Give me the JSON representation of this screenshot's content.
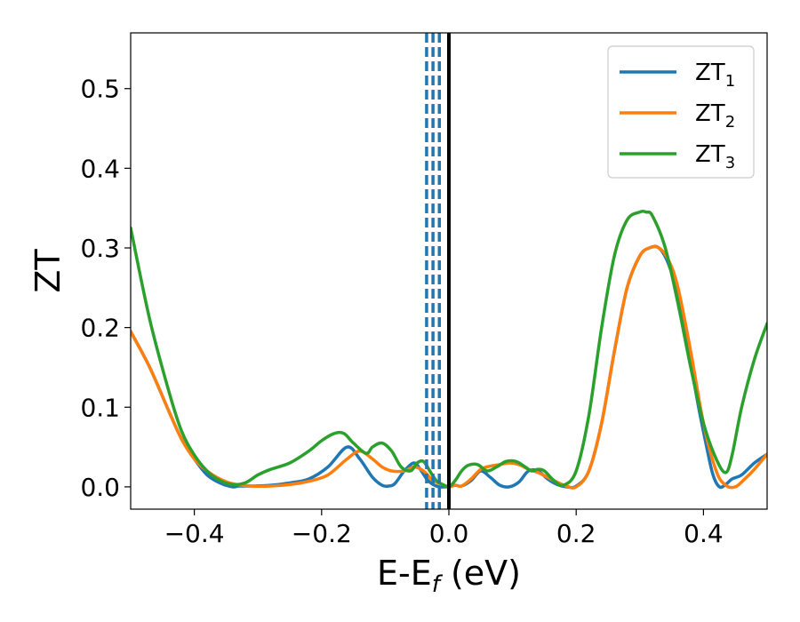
{
  "chart_data": {
    "type": "line",
    "xlabel": {
      "main": "E-E",
      "sub": "f",
      "suffix": " (eV)"
    },
    "ylabel": "ZT",
    "xlim": [
      -0.5,
      0.5
    ],
    "ylim": [
      -0.028,
      0.57
    ],
    "xticks": [
      -0.4,
      -0.2,
      0.0,
      0.2,
      0.4
    ],
    "xtick_labels": [
      "−0.4",
      "−0.2",
      "0.0",
      "0.2",
      "0.4"
    ],
    "yticks": [
      0.0,
      0.1,
      0.2,
      0.3,
      0.4,
      0.5
    ],
    "ytick_labels": [
      "0.0",
      "0.1",
      "0.2",
      "0.3",
      "0.4",
      "0.5"
    ],
    "grid": false,
    "legend_position": "top-right",
    "series": [
      {
        "name": "ZT",
        "sub": "1",
        "color": "#1f77b4",
        "x": [
          -0.5,
          -0.47,
          -0.44,
          -0.42,
          -0.4,
          -0.38,
          -0.36,
          -0.34,
          -0.33,
          -0.31,
          -0.28,
          -0.25,
          -0.22,
          -0.19,
          -0.16,
          -0.14,
          -0.12,
          -0.105,
          -0.095,
          -0.085,
          -0.07,
          -0.055,
          -0.045,
          -0.035,
          -0.025,
          -0.015,
          -0.005,
          0.0,
          0.01,
          0.02,
          0.035,
          0.05,
          0.065,
          0.08,
          0.095,
          0.11,
          0.125,
          0.14,
          0.155,
          0.17,
          0.185,
          0.2,
          0.22,
          0.24,
          0.26,
          0.28,
          0.3,
          0.315,
          0.33,
          0.345,
          0.36,
          0.375,
          0.39,
          0.405,
          0.415,
          0.425,
          0.435,
          0.445,
          0.46,
          0.48,
          0.5
        ],
        "y": [
          0.195,
          0.15,
          0.095,
          0.06,
          0.035,
          0.015,
          0.005,
          0.0,
          0.001,
          0.001,
          0.002,
          0.005,
          0.01,
          0.025,
          0.05,
          0.035,
          0.012,
          0.002,
          0.001,
          0.004,
          0.02,
          0.03,
          0.022,
          0.01,
          0.003,
          0.0,
          0.0,
          0.0,
          0.002,
          0.001,
          0.008,
          0.02,
          0.012,
          0.002,
          0.0,
          0.006,
          0.02,
          0.02,
          0.01,
          0.003,
          0.0,
          0.001,
          0.02,
          0.08,
          0.17,
          0.25,
          0.29,
          0.3,
          0.3,
          0.28,
          0.24,
          0.18,
          0.11,
          0.05,
          0.015,
          0.0,
          0.003,
          0.01,
          0.015,
          0.03,
          0.041
        ]
      },
      {
        "name": "ZT",
        "sub": "2",
        "color": "#ff7f0e",
        "x": [
          -0.5,
          -0.47,
          -0.44,
          -0.42,
          -0.4,
          -0.38,
          -0.36,
          -0.34,
          -0.31,
          -0.28,
          -0.25,
          -0.22,
          -0.19,
          -0.16,
          -0.14,
          -0.12,
          -0.105,
          -0.09,
          -0.07,
          -0.055,
          -0.04,
          -0.025,
          -0.01,
          0.0,
          0.01,
          0.02,
          0.035,
          0.05,
          0.065,
          0.08,
          0.095,
          0.11,
          0.125,
          0.14,
          0.155,
          0.17,
          0.185,
          0.2,
          0.22,
          0.24,
          0.26,
          0.28,
          0.3,
          0.315,
          0.33,
          0.345,
          0.36,
          0.38,
          0.4,
          0.42,
          0.435,
          0.45,
          0.465,
          0.48,
          0.5
        ],
        "y": [
          0.195,
          0.15,
          0.095,
          0.06,
          0.035,
          0.02,
          0.01,
          0.004,
          0.001,
          0.001,
          0.003,
          0.007,
          0.015,
          0.035,
          0.045,
          0.035,
          0.025,
          0.02,
          0.02,
          0.025,
          0.02,
          0.008,
          0.003,
          0.0,
          0.002,
          0.001,
          0.01,
          0.022,
          0.026,
          0.028,
          0.03,
          0.028,
          0.022,
          0.018,
          0.012,
          0.006,
          0.001,
          0.0,
          0.02,
          0.08,
          0.17,
          0.25,
          0.29,
          0.3,
          0.3,
          0.285,
          0.25,
          0.17,
          0.08,
          0.02,
          0.002,
          0.0,
          0.01,
          0.022,
          0.041
        ]
      },
      {
        "name": "ZT",
        "sub": "3",
        "color": "#2ca02c",
        "x": [
          -0.5,
          -0.47,
          -0.44,
          -0.42,
          -0.4,
          -0.38,
          -0.36,
          -0.34,
          -0.32,
          -0.3,
          -0.28,
          -0.25,
          -0.22,
          -0.2,
          -0.18,
          -0.165,
          -0.15,
          -0.13,
          -0.12,
          -0.105,
          -0.09,
          -0.075,
          -0.06,
          -0.05,
          -0.04,
          -0.03,
          -0.02,
          -0.01,
          0.0,
          0.01,
          0.02,
          0.03,
          0.045,
          0.06,
          0.075,
          0.09,
          0.105,
          0.12,
          0.13,
          0.14,
          0.15,
          0.165,
          0.18,
          0.2,
          0.22,
          0.24,
          0.26,
          0.28,
          0.3,
          0.31,
          0.32,
          0.34,
          0.36,
          0.38,
          0.4,
          0.42,
          0.435,
          0.445,
          0.46,
          0.48,
          0.5
        ],
        "y": [
          0.325,
          0.21,
          0.12,
          0.07,
          0.04,
          0.02,
          0.008,
          0.003,
          0.005,
          0.015,
          0.022,
          0.03,
          0.045,
          0.058,
          0.067,
          0.067,
          0.055,
          0.042,
          0.05,
          0.055,
          0.045,
          0.025,
          0.02,
          0.03,
          0.032,
          0.02,
          0.008,
          0.003,
          0.0,
          0.008,
          0.02,
          0.027,
          0.028,
          0.02,
          0.025,
          0.032,
          0.032,
          0.025,
          0.02,
          0.022,
          0.02,
          0.008,
          0.002,
          0.02,
          0.09,
          0.2,
          0.29,
          0.335,
          0.345,
          0.345,
          0.34,
          0.3,
          0.23,
          0.15,
          0.08,
          0.035,
          0.018,
          0.04,
          0.1,
          0.16,
          0.205
        ]
      }
    ],
    "vlines": [
      {
        "x": -0.035,
        "style": "dashed",
        "color": "#1f77b4"
      },
      {
        "x": -0.025,
        "style": "dashed",
        "color": "#1f77b4"
      },
      {
        "x": -0.015,
        "style": "dashed",
        "color": "#1f77b4"
      },
      {
        "x": 0.0,
        "style": "solid",
        "color": "#000000"
      }
    ]
  }
}
